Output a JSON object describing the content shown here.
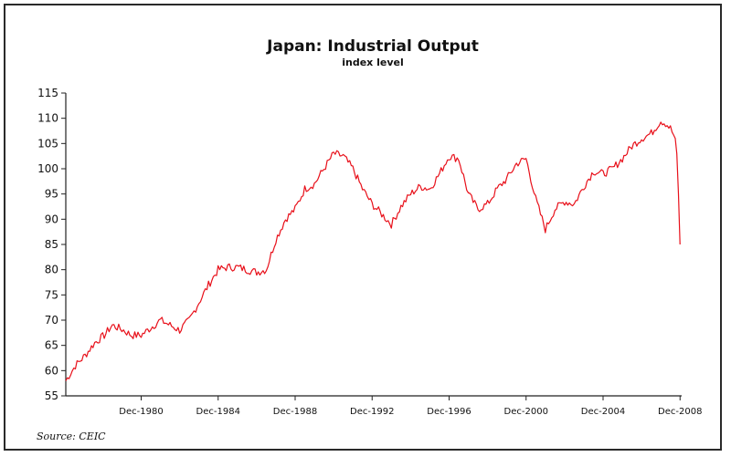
{
  "chart_data": {
    "type": "line",
    "title": "Japan: Industrial Output",
    "subtitle": "index level",
    "source": "Source: CEIC",
    "xlabel": "",
    "ylabel": "",
    "ylim": [
      55,
      115
    ],
    "yticks": [
      55,
      60,
      65,
      70,
      75,
      80,
      85,
      90,
      95,
      100,
      105,
      110,
      115
    ],
    "xlim": [
      "1977-01",
      "2009-01"
    ],
    "xticks": [
      {
        "label": "Dec-1980",
        "date": "1980-12"
      },
      {
        "label": "Dec-1984",
        "date": "1984-12"
      },
      {
        "label": "Dec-1988",
        "date": "1988-12"
      },
      {
        "label": "Dec-1992",
        "date": "1992-12"
      },
      {
        "label": "Dec-1996",
        "date": "1996-12"
      },
      {
        "label": "Dec-2000",
        "date": "2000-12"
      },
      {
        "label": "Dec-2004",
        "date": "2004-12"
      },
      {
        "label": "Dec-2008",
        "date": "2008-12"
      }
    ],
    "grid": false,
    "legend": "none",
    "line_color": "#e8101a",
    "series": [
      {
        "x": [
          "1977-01",
          "1977-07",
          "1978-01",
          "1978-07",
          "1979-01",
          "1979-06",
          "1980-01",
          "1980-06",
          "1980-12",
          "1981-06",
          "1981-12",
          "1982-06",
          "1982-12",
          "1983-06",
          "1983-12",
          "1984-06",
          "1984-12",
          "1985-06",
          "1985-12",
          "1986-06",
          "1986-12",
          "1987-06",
          "1987-12",
          "1988-06",
          "1988-12",
          "1989-06",
          "1989-12",
          "1990-06",
          "1990-12",
          "1991-06",
          "1991-12",
          "1992-06",
          "1992-12",
          "1993-06",
          "1993-12",
          "1994-06",
          "1994-12",
          "1995-06",
          "1995-12",
          "1996-06",
          "1996-12",
          "1997-06",
          "1997-12",
          "1998-06",
          "1998-12",
          "1999-06",
          "1999-12",
          "2000-06",
          "2000-12",
          "2001-06",
          "2001-12",
          "2002-06",
          "2002-12",
          "2003-06",
          "2003-12",
          "2004-06",
          "2004-12",
          "2005-06",
          "2005-12",
          "2006-06",
          "2006-12",
          "2007-06",
          "2007-12",
          "2008-03",
          "2008-06",
          "2008-09",
          "2008-10",
          "2008-11",
          "2008-12"
        ],
        "y": [
          58,
          61,
          63,
          65.5,
          67,
          69,
          68,
          67,
          67,
          68.5,
          70,
          69,
          68,
          70,
          73.5,
          77,
          80,
          80.5,
          80.5,
          80,
          79.5,
          80,
          86,
          90,
          92,
          96,
          97,
          100,
          103,
          102.5,
          100,
          96,
          93,
          91,
          89,
          92.5,
          95,
          96.5,
          96,
          99,
          102.5,
          102,
          95,
          92,
          93,
          96,
          98,
          101,
          102,
          94,
          88,
          92,
          93.5,
          93,
          96.5,
          99.5,
          99,
          100,
          102,
          104.5,
          106,
          107,
          109.5,
          109,
          108,
          106,
          103,
          95,
          85
        ]
      }
    ]
  }
}
